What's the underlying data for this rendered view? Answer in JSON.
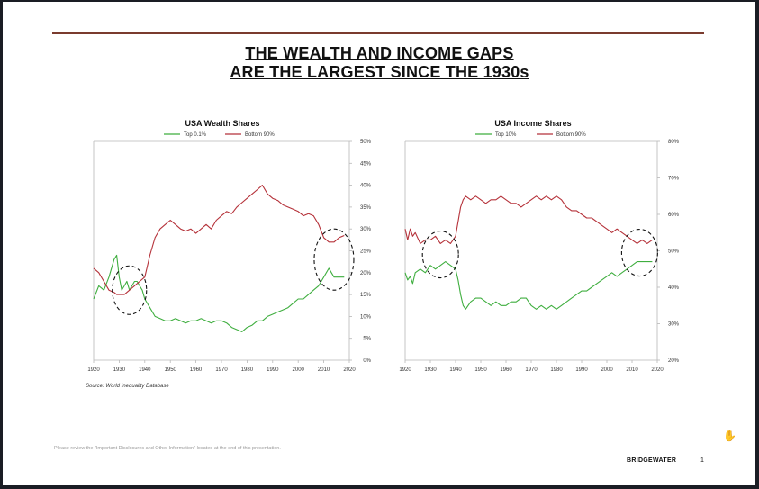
{
  "title": {
    "line1": "THE WEALTH AND INCOME GAPS",
    "line2": "ARE THE LARGEST SINCE THE 1930s"
  },
  "source": "Source: World Inequality Database",
  "disclaimer": "Please review the \"Important Disclosures and Other Information\" located at the end of this presentation.",
  "brand": "BRIDGEWATER",
  "page_number": "1",
  "colors": {
    "rule": "#7a3b2e",
    "top_series": "#3fae3f",
    "bottom_series": "#b5323a",
    "axis": "#b8b8b8"
  },
  "chart_data": [
    {
      "type": "line",
      "title": "USA Wealth Shares",
      "xlabel": "",
      "ylabel": "",
      "xlim": [
        1920,
        2020
      ],
      "ylim": [
        0,
        50
      ],
      "x_ticks": [
        1920,
        1930,
        1940,
        1950,
        1960,
        1970,
        1980,
        1990,
        2000,
        2010,
        2020
      ],
      "y_ticks": [
        "0%",
        "5%",
        "10%",
        "15%",
        "20%",
        "25%",
        "30%",
        "35%",
        "40%",
        "45%",
        "50%"
      ],
      "grid": false,
      "legend": "top",
      "annotations": [
        "circle around 1929-1939",
        "circle around 2009-2019"
      ],
      "series": [
        {
          "name": "Top 0.1%",
          "color": "#3fae3f",
          "x": [
            1920,
            1922,
            1924,
            1926,
            1928,
            1929,
            1930,
            1931,
            1932,
            1933,
            1934,
            1935,
            1936,
            1937,
            1938,
            1939,
            1940,
            1942,
            1944,
            1946,
            1948,
            1950,
            1952,
            1954,
            1956,
            1958,
            1960,
            1962,
            1964,
            1966,
            1968,
            1970,
            1972,
            1974,
            1976,
            1978,
            1980,
            1982,
            1984,
            1986,
            1988,
            1990,
            1992,
            1994,
            1996,
            1998,
            2000,
            2002,
            2004,
            2006,
            2008,
            2010,
            2012,
            2013,
            2014,
            2016,
            2018
          ],
          "y": [
            14,
            17,
            16,
            19,
            23,
            24,
            19,
            16,
            17,
            18,
            16,
            17,
            18,
            18,
            17,
            16,
            14,
            12,
            10,
            9.5,
            9,
            9,
            9.5,
            9,
            8.5,
            9,
            9,
            9.5,
            9,
            8.5,
            9,
            9,
            8.5,
            7.5,
            7,
            6.5,
            7.5,
            8,
            9,
            9,
            10,
            10.5,
            11,
            11.5,
            12,
            13,
            14,
            14,
            15,
            16,
            17,
            19,
            21,
            20,
            19,
            19,
            19
          ]
        },
        {
          "name": "Bottom 90%",
          "color": "#b5323a",
          "x": [
            1920,
            1922,
            1924,
            1926,
            1928,
            1929,
            1930,
            1932,
            1934,
            1936,
            1938,
            1940,
            1942,
            1944,
            1946,
            1948,
            1950,
            1952,
            1954,
            1956,
            1958,
            1960,
            1962,
            1964,
            1966,
            1968,
            1970,
            1972,
            1974,
            1976,
            1978,
            1980,
            1982,
            1984,
            1986,
            1988,
            1990,
            1992,
            1994,
            1996,
            1998,
            2000,
            2002,
            2004,
            2006,
            2008,
            2010,
            2012,
            2014,
            2016,
            2018
          ],
          "y": [
            21,
            20,
            18,
            16,
            15.5,
            15,
            15,
            15,
            16,
            17,
            18,
            19,
            24,
            28,
            30,
            31,
            32,
            31,
            30,
            29.5,
            30,
            29,
            30,
            31,
            30,
            32,
            33,
            34,
            33.5,
            35,
            36,
            37,
            38,
            39,
            40,
            38,
            37,
            36.5,
            35.5,
            35,
            34.5,
            34,
            33,
            33.5,
            33,
            31,
            28,
            27,
            27,
            28,
            28.5
          ]
        }
      ]
    },
    {
      "type": "line",
      "title": "USA Income Shares",
      "xlabel": "",
      "ylabel": "",
      "xlim": [
        1920,
        2020
      ],
      "ylim": [
        20,
        80
      ],
      "x_ticks": [
        1920,
        1930,
        1940,
        1950,
        1960,
        1970,
        1980,
        1990,
        2000,
        2010,
        2020
      ],
      "y_ticks": [
        "20%",
        "30%",
        "40%",
        "50%",
        "60%",
        "70%",
        "80%"
      ],
      "grid": false,
      "legend": "top",
      "annotations": [
        "circle around 1928-1940",
        "circle around 2008-2018"
      ],
      "series": [
        {
          "name": "Top 10%",
          "color": "#3fae3f",
          "x": [
            1920,
            1921,
            1922,
            1923,
            1924,
            1926,
            1928,
            1930,
            1932,
            1934,
            1936,
            1938,
            1940,
            1941,
            1942,
            1943,
            1944,
            1946,
            1948,
            1950,
            1952,
            1954,
            1956,
            1958,
            1960,
            1962,
            1964,
            1966,
            1968,
            1970,
            1972,
            1974,
            1976,
            1978,
            1980,
            1982,
            1984,
            1986,
            1988,
            1990,
            1992,
            1994,
            1996,
            1998,
            2000,
            2002,
            2004,
            2006,
            2008,
            2010,
            2012,
            2014,
            2016,
            2018
          ],
          "y": [
            44,
            42,
            43,
            41,
            44,
            45,
            44,
            46,
            45,
            46,
            47,
            46,
            45,
            42,
            38,
            35,
            34,
            36,
            37,
            37,
            36,
            35,
            36,
            35,
            35,
            36,
            36,
            37,
            37,
            35,
            34,
            35,
            34,
            35,
            34,
            35,
            36,
            37,
            38,
            39,
            39,
            40,
            41,
            42,
            43,
            44,
            43,
            44,
            45,
            46,
            47,
            47,
            47,
            47
          ]
        },
        {
          "name": "Bottom 90%",
          "color": "#b5323a",
          "x": [
            1920,
            1921,
            1922,
            1923,
            1924,
            1926,
            1928,
            1930,
            1932,
            1934,
            1936,
            1938,
            1940,
            1941,
            1942,
            1943,
            1944,
            1946,
            1948,
            1950,
            1952,
            1954,
            1956,
            1958,
            1960,
            1962,
            1964,
            1966,
            1968,
            1970,
            1972,
            1974,
            1976,
            1978,
            1980,
            1982,
            1984,
            1986,
            1988,
            1990,
            1992,
            1994,
            1996,
            1998,
            2000,
            2002,
            2004,
            2006,
            2008,
            2010,
            2012,
            2014,
            2016,
            2018
          ],
          "y": [
            56,
            53,
            56,
            54,
            55,
            52,
            53,
            53,
            54,
            52,
            53,
            52,
            54,
            58,
            62,
            64,
            65,
            64,
            65,
            64,
            63,
            64,
            64,
            65,
            64,
            63,
            63,
            62,
            63,
            64,
            65,
            64,
            65,
            64,
            65,
            64,
            62,
            61,
            61,
            60,
            59,
            59,
            58,
            57,
            56,
            55,
            56,
            55,
            54,
            53,
            52,
            53,
            52,
            53
          ]
        }
      ]
    }
  ]
}
